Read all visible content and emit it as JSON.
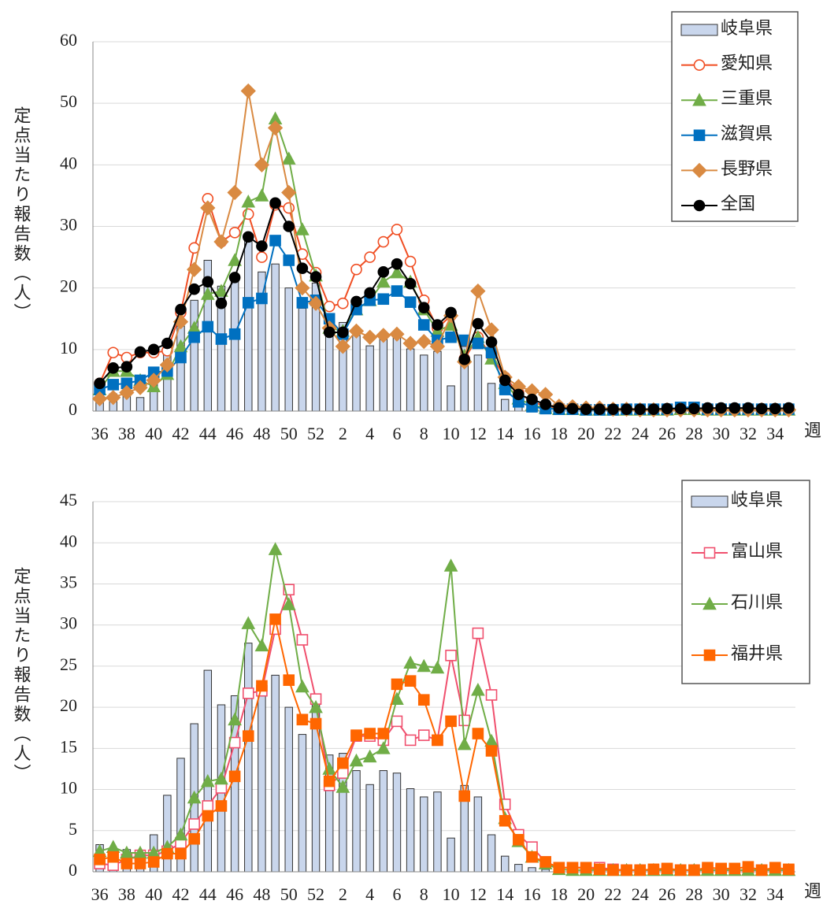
{
  "chart_data": [
    {
      "type": "combo",
      "y_label": "定点当たり報告数（人）",
      "x_label": "週",
      "grid": true,
      "legend": "upper right",
      "categories": [
        36,
        null,
        38,
        null,
        40,
        null,
        42,
        null,
        44,
        null,
        46,
        null,
        48,
        null,
        50,
        null,
        52,
        null,
        2,
        null,
        4,
        null,
        6,
        null,
        8,
        null,
        10,
        null,
        12,
        null,
        14,
        null,
        16,
        null,
        18,
        null,
        20,
        null,
        22,
        null,
        24,
        null,
        26,
        null,
        28,
        null,
        30,
        null,
        32,
        null,
        34,
        null
      ],
      "ylim": [
        0,
        60
      ],
      "yticks": [
        0,
        10,
        20,
        30,
        40,
        50,
        60
      ],
      "series": [
        {
          "name": "岐阜県",
          "kind": "bar",
          "color": "#c9d6ec",
          "values": [
            3.3,
            2.8,
            2.7,
            2.2,
            4.5,
            9.3,
            13.8,
            18.0,
            24.5,
            20.3,
            21.4,
            27.8,
            22.6,
            23.9,
            20.0,
            16.7,
            20.8,
            14.2,
            14.4,
            12.3,
            10.6,
            12.3,
            12.0,
            10.1,
            9.1,
            9.7,
            4.1,
            10.5,
            9.1,
            4.5,
            1.9,
            0.9,
            0.5,
            0.3,
            0.2,
            0.2,
            0.1,
            0.2,
            0.1,
            0.1,
            0.1,
            0.1,
            0.1,
            0.2,
            0.2,
            0.1,
            0.1,
            0.1,
            0.1,
            0.1,
            0.1,
            0.1
          ]
        },
        {
          "name": "愛知県",
          "kind": "line",
          "marker": "circle-open",
          "color": "#f04e23",
          "values": [
            4.5,
            9.5,
            8.7,
            9.5,
            9.5,
            9.8,
            16,
            26.5,
            34.5,
            27.5,
            29,
            32,
            25,
            33.5,
            33,
            25.5,
            22.5,
            17,
            17.5,
            23,
            25,
            27.5,
            29.5,
            24.3,
            18,
            13.5,
            15.5,
            8.5,
            12,
            9,
            5.5,
            3,
            1.5,
            0.8,
            0.5,
            0.3,
            0.3,
            0.3,
            0.2,
            0.2,
            0.2,
            0.2,
            0.2,
            0.3,
            0.3,
            0.3,
            0.3,
            0.3,
            0.2,
            0.2,
            0.2,
            0.2
          ]
        },
        {
          "name": "三重県",
          "kind": "line",
          "marker": "triangle",
          "color": "#70ad47",
          "values": [
            3.5,
            6.5,
            6.5,
            5,
            4,
            6,
            10.5,
            13.5,
            19,
            19.5,
            24.5,
            34,
            35,
            47.5,
            41,
            29.5,
            22,
            13.5,
            13,
            16.5,
            18,
            21,
            22.5,
            21,
            16.5,
            13,
            14,
            9,
            12,
            8.5,
            4.5,
            2,
            1,
            0.5,
            0.3,
            0.3,
            0.2,
            0.2,
            0.2,
            0.2,
            0.2,
            0.2,
            0.2,
            0.3,
            0.3,
            0.2,
            0.2,
            0.2,
            0.2,
            0.2,
            0.2,
            0.2
          ]
        },
        {
          "name": "滋賀県",
          "kind": "line",
          "marker": "square",
          "color": "#0070c0",
          "values": [
            3.5,
            4.3,
            4.5,
            5,
            6.3,
            6.5,
            8.7,
            12,
            13.7,
            11.7,
            12.5,
            17.6,
            18.3,
            27.7,
            24.5,
            17.6,
            18,
            15,
            12.5,
            16.5,
            18,
            18.2,
            19.5,
            17.7,
            14,
            11.5,
            12,
            11.5,
            11,
            9.5,
            3.5,
            1.5,
            0.7,
            0.4,
            0.3,
            0.3,
            0.2,
            0.2,
            0.2,
            0.3,
            0.3,
            0.3,
            0.3,
            0.6,
            0.6,
            0.3,
            0.3,
            0.3,
            0.3,
            0.3,
            0.3,
            0.3
          ]
        },
        {
          "name": "長野県",
          "kind": "line",
          "marker": "diamond",
          "color": "#d98a42",
          "values": [
            2,
            2.2,
            3,
            3.8,
            5,
            7.5,
            14.5,
            23,
            33,
            27.5,
            35.5,
            52,
            40,
            46,
            35.5,
            20,
            17.5,
            13.5,
            10.5,
            13,
            12,
            12.3,
            12.5,
            11,
            11.3,
            10.5,
            15.5,
            8,
            19.5,
            13.2,
            5.5,
            4,
            3.3,
            2.7,
            0.8,
            0.7,
            0.5,
            0.5,
            0.3,
            0.3,
            0.2,
            0.2,
            0.2,
            0.2,
            0.2,
            0.2,
            0.2,
            0.2,
            0.2,
            0.2,
            0.2,
            0.2
          ]
        },
        {
          "name": "全国",
          "kind": "line",
          "marker": "circle",
          "color": "#000000",
          "values": [
            4.5,
            7,
            7.2,
            9.6,
            10,
            11,
            16.5,
            19.8,
            21,
            17.5,
            21.7,
            28.3,
            26.8,
            33.8,
            30,
            23.2,
            21.8,
            12.8,
            12.8,
            17.8,
            19.2,
            22.6,
            23.9,
            20.7,
            16.8,
            14,
            16,
            8.4,
            14.2,
            11.2,
            5,
            2.7,
            1.9,
            1.1,
            0.5,
            0.4,
            0.3,
            0.3,
            0.3,
            0.3,
            0.3,
            0.3,
            0.4,
            0.4,
            0.4,
            0.5,
            0.5,
            0.5,
            0.5,
            0.4,
            0.4,
            0.5
          ]
        }
      ]
    },
    {
      "type": "combo",
      "y_label": "定点当たり報告数（人）",
      "x_label": "週",
      "grid": true,
      "legend": "upper right",
      "categories": [
        36,
        null,
        38,
        null,
        40,
        null,
        42,
        null,
        44,
        null,
        46,
        null,
        48,
        null,
        50,
        null,
        52,
        null,
        2,
        null,
        4,
        null,
        6,
        null,
        8,
        null,
        10,
        null,
        12,
        null,
        14,
        null,
        16,
        null,
        18,
        null,
        20,
        null,
        22,
        null,
        24,
        null,
        26,
        null,
        28,
        null,
        30,
        null,
        32,
        null,
        34,
        null
      ],
      "ylim": [
        0,
        45
      ],
      "yticks": [
        0,
        5,
        10,
        15,
        20,
        25,
        30,
        35,
        40,
        45
      ],
      "series": [
        {
          "name": "岐阜県",
          "kind": "bar",
          "color": "#c9d6ec",
          "values": [
            3.3,
            2.8,
            2.7,
            2.2,
            4.5,
            9.3,
            13.8,
            18.0,
            24.5,
            20.3,
            21.4,
            27.8,
            22.6,
            23.9,
            20.0,
            16.7,
            20.8,
            14.2,
            14.4,
            12.3,
            10.6,
            12.3,
            12.0,
            10.1,
            9.1,
            9.7,
            4.1,
            10.5,
            9.1,
            4.5,
            1.9,
            0.9,
            0.5,
            0.3,
            0.2,
            0.2,
            0.1,
            0.2,
            0.1,
            0.1,
            0.1,
            0.1,
            0.1,
            0.2,
            0.2,
            0.1,
            0.1,
            0.1,
            0.1,
            0.1,
            0.1,
            0.1
          ]
        },
        {
          "name": "富山県",
          "kind": "line",
          "marker": "square-open",
          "color": "#f0506e",
          "values": [
            1,
            0.8,
            1.5,
            2,
            2,
            2.5,
            3.5,
            5.8,
            8,
            10.2,
            15.7,
            21.7,
            22,
            29.5,
            34.3,
            28.2,
            21,
            10.5,
            12,
            16.5,
            16.5,
            16,
            18.3,
            16,
            16.6,
            16,
            26.3,
            18.4,
            29,
            21.5,
            8.2,
            4.5,
            3,
            1.2,
            0.5,
            0.5,
            0.5,
            0.5,
            0.3,
            0.2,
            0.2,
            0.2,
            0.2,
            0.2,
            0.2,
            0.2,
            0.2,
            0.2,
            0.2,
            0.2,
            0.2,
            0.2
          ]
        },
        {
          "name": "石川県",
          "kind": "line",
          "marker": "triangle",
          "color": "#70ad47",
          "values": [
            2.5,
            3,
            2.3,
            2.3,
            2.3,
            3,
            4.5,
            9,
            11,
            11.3,
            18.5,
            30.2,
            27.5,
            39.2,
            32.5,
            22.5,
            20,
            12.5,
            10.3,
            13.5,
            14,
            15,
            21,
            25.4,
            25,
            24.8,
            37.2,
            15.5,
            22.1,
            15.9,
            6.5,
            3.7,
            1.8,
            1,
            0.3,
            0.2,
            0.2,
            0.2,
            0.2,
            0.2,
            0.2,
            0.2,
            0.2,
            0.2,
            0.2,
            0.2,
            0.2,
            0.2,
            0.2,
            0.2,
            0.2,
            0.2
          ]
        },
        {
          "name": "福井県",
          "kind": "line",
          "marker": "square",
          "color": "#ff6600",
          "values": [
            1.5,
            1.8,
            1,
            1,
            1.2,
            2.2,
            2.2,
            4,
            6.8,
            8,
            11.6,
            16.5,
            22.6,
            30.7,
            23.3,
            18.5,
            18,
            11,
            13.2,
            16.6,
            16.8,
            16.8,
            22.8,
            23.2,
            20.9,
            16,
            18.3,
            9.2,
            16.8,
            14.7,
            6.2,
            3.9,
            1.8,
            1.2,
            0.5,
            0.5,
            0.5,
            0.3,
            0.2,
            0.2,
            0.2,
            0.3,
            0.4,
            0.2,
            0.2,
            0.5,
            0.4,
            0.4,
            0.6,
            0.2,
            0.5,
            0.3
          ]
        }
      ]
    }
  ]
}
